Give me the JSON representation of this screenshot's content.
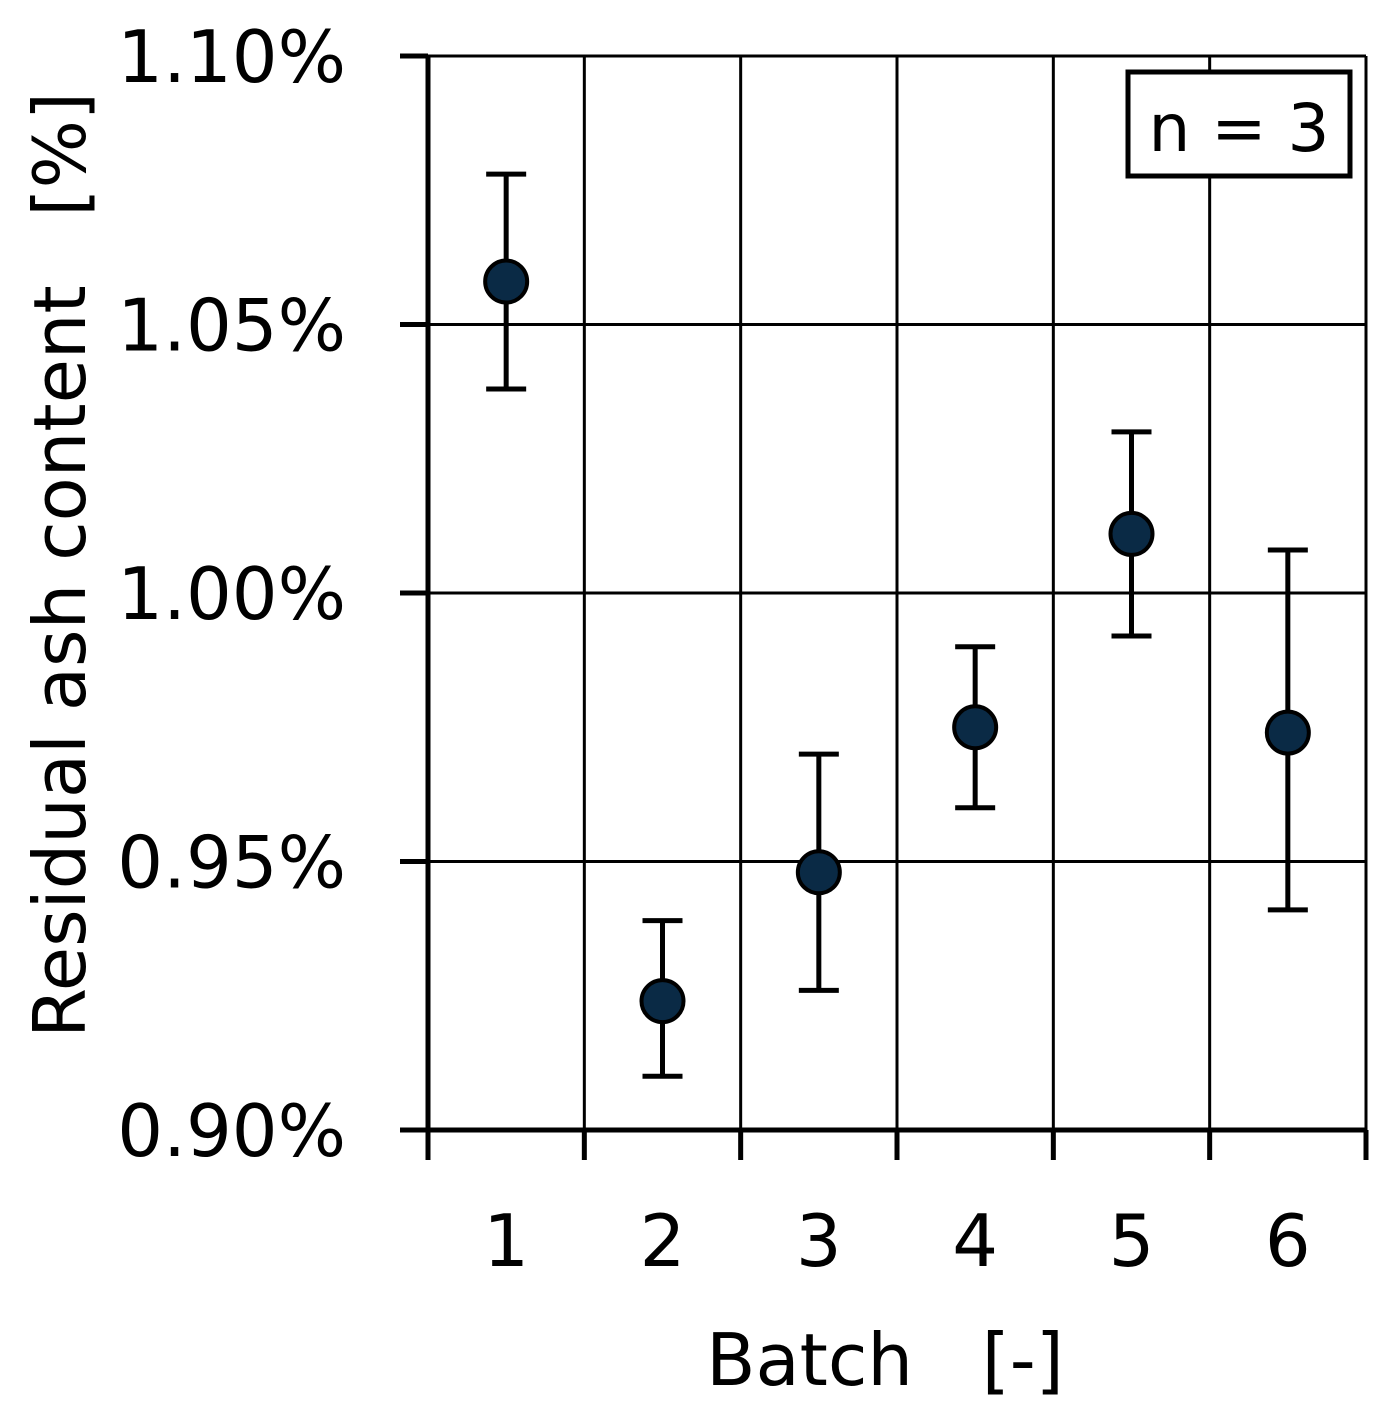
{
  "chart_data": {
    "type": "scatter",
    "title": "",
    "xlabel": "Batch   [-]",
    "ylabel": "Residual ash content   [%]",
    "categories": [
      "1",
      "2",
      "3",
      "4",
      "5",
      "6"
    ],
    "ylim": [
      0.9,
      1.1
    ],
    "yticks": [
      "0.90%",
      "0.95%",
      "1.00%",
      "1.05%",
      "1.10%"
    ],
    "ytick_values": [
      0.9,
      0.95,
      1.0,
      1.05,
      1.1
    ],
    "grid": true,
    "annotation": "n = 3",
    "series": [
      {
        "values": [
          1.058,
          0.924,
          0.948,
          0.975,
          1.011,
          0.974
        ],
        "error_low": [
          1.038,
          0.91,
          0.926,
          0.96,
          0.992,
          0.941
        ],
        "error_high": [
          1.078,
          0.939,
          0.97,
          0.99,
          1.03,
          1.008
        ]
      }
    ],
    "colors": {
      "marker": "#0a2a45",
      "axis": "#000000"
    }
  }
}
